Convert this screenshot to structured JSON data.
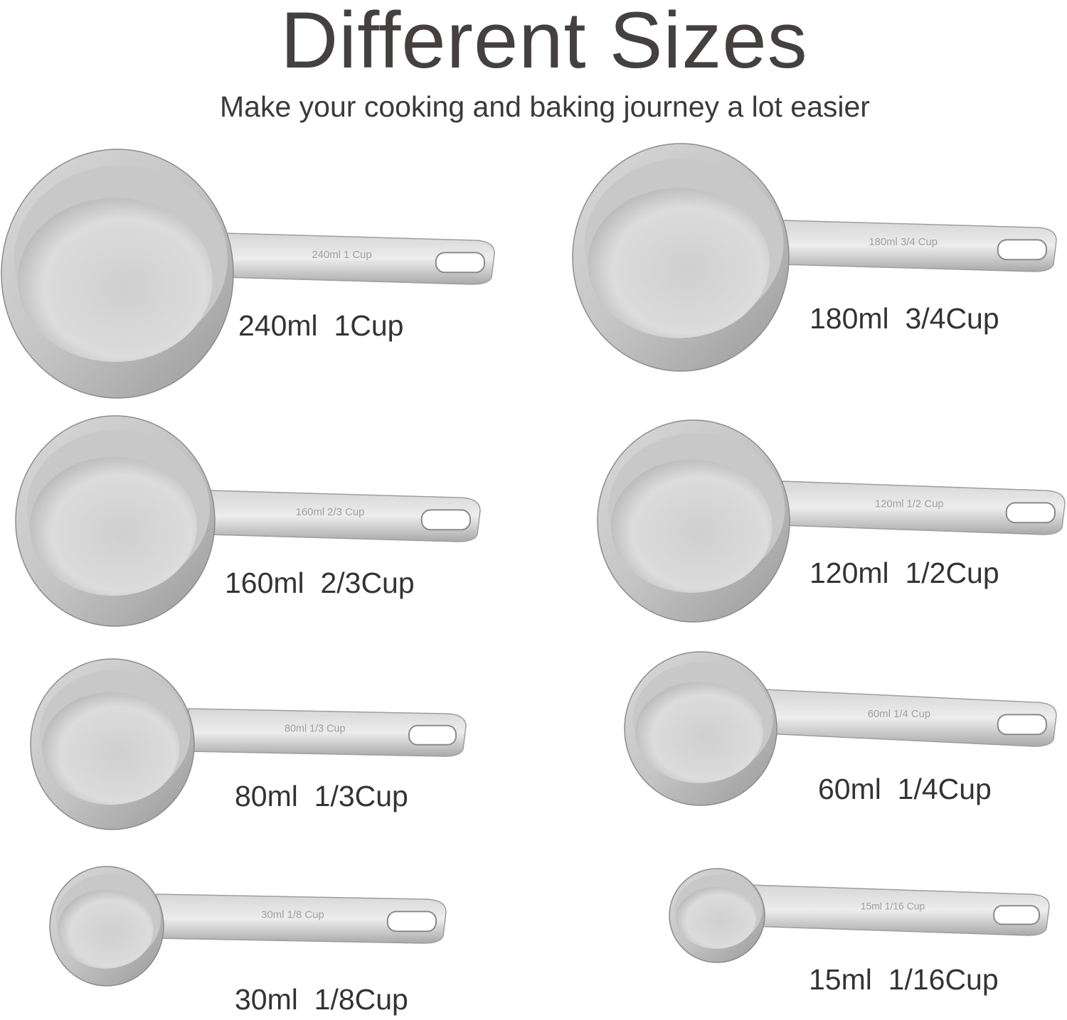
{
  "header": {
    "title": "Different Sizes",
    "subtitle": "Make your cooking and baking journey a lot easier"
  },
  "colors": {
    "steel_light": "#e6e6e6",
    "steel_mid": "#bdbdbd",
    "steel_dark": "#8f8f8f",
    "text": "#333333"
  },
  "cups": [
    {
      "label": "240ml  1Cup",
      "engraving": "240ml 1 Cup"
    },
    {
      "label": "180ml  3/4Cup",
      "engraving": "180ml 3/4 Cup"
    },
    {
      "label": "160ml  2/3Cup",
      "engraving": "160ml 2/3 Cup"
    },
    {
      "label": "120ml  1/2Cup",
      "engraving": "120ml 1/2 Cup"
    },
    {
      "label": "80ml  1/3Cup",
      "engraving": "80ml 1/3 Cup"
    },
    {
      "label": "60ml  1/4Cup",
      "engraving": "60ml 1/4 Cup"
    },
    {
      "label": "30ml  1/8Cup",
      "engraving": "30ml 1/8 Cup"
    },
    {
      "label": "15ml  1/16Cup",
      "engraving": "15ml 1/16 Cup"
    }
  ]
}
